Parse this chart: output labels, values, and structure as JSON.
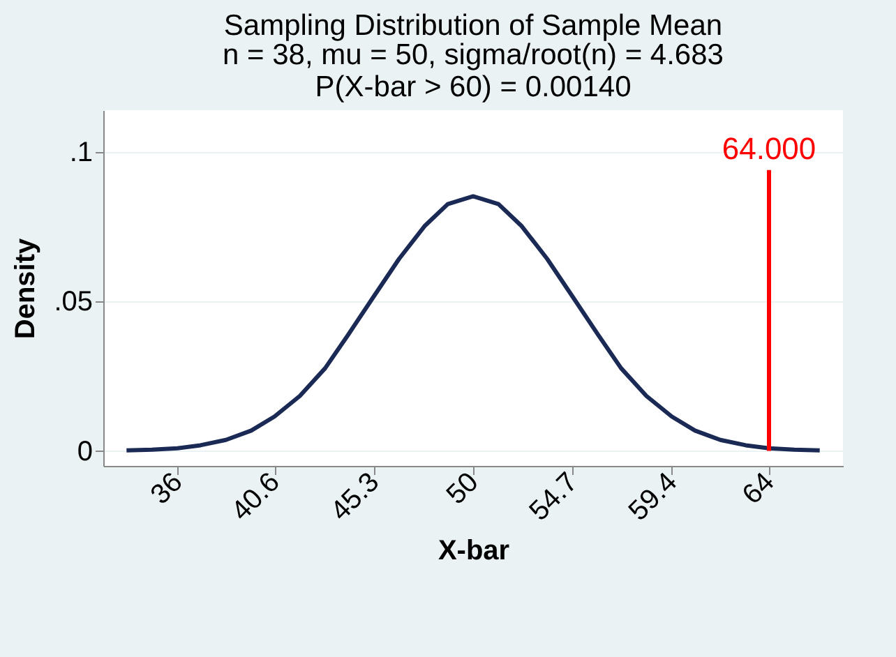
{
  "chart_data": {
    "type": "line",
    "title": "Sampling Distribution of Sample Mean",
    "subtitle": "n = 38, mu = 50, sigma/root(n) = 4.683\nP(X-bar > 60) = 0.00140",
    "xlabel": "X-bar",
    "ylabel": "Density",
    "series": [
      {
        "color": "#1a2a55",
        "x": [
          33.6,
          34.8,
          36.0,
          37.1,
          38.3,
          39.5,
          40.6,
          41.8,
          43.0,
          44.1,
          45.3,
          46.5,
          47.7,
          48.8,
          50,
          51.2,
          52.3,
          53.5,
          54.7,
          55.9,
          57.0,
          58.2,
          59.4,
          60.5,
          61.7,
          62.9,
          64.0,
          65.2,
          66.4
        ],
        "values": [
          0.0002,
          0.0004,
          0.0009,
          0.0019,
          0.0037,
          0.0068,
          0.0115,
          0.0184,
          0.0277,
          0.039,
          0.0517,
          0.0643,
          0.0752,
          0.0826,
          0.0852,
          0.0826,
          0.0752,
          0.0643,
          0.0517,
          0.039,
          0.0277,
          0.0184,
          0.0115,
          0.0068,
          0.0037,
          0.0019,
          0.0009,
          0.0004,
          0.0002
        ]
      },
      {
        "color": "#ff0000",
        "x": [
          64,
          64
        ],
        "values": [
          0,
          0.094
        ]
      }
    ],
    "annotations": [
      {
        "text": "64.000",
        "x": 64,
        "y": 0.094
      }
    ],
    "xlim": [
      32.5,
      67.5
    ],
    "xticks": [
      36,
      40.6,
      45.3,
      50,
      54.7,
      59.4,
      64
    ],
    "ylim": [
      -0.005,
      0.114
    ],
    "yticks": [
      0,
      {
        "value": 0.05,
        "label": ".05"
      },
      {
        "value": 0.1,
        "label": ".1"
      }
    ],
    "grid": "y",
    "legend": false,
    "marker": "none",
    "line_style": "solid"
  }
}
